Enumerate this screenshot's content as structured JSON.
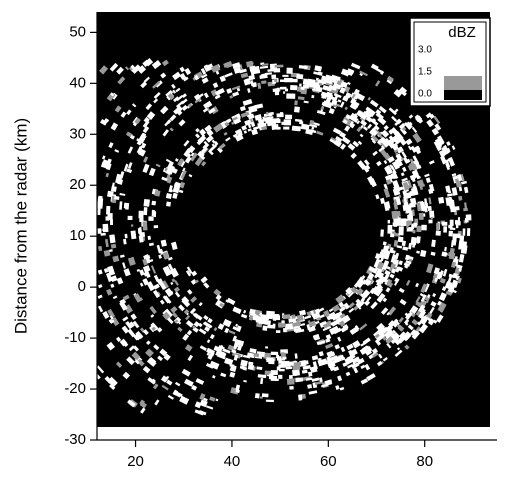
{
  "chart_data": {
    "type": "radar-image",
    "ylabel": "Distance from the radar (km)",
    "xlim": [
      12,
      95
    ],
    "xticks": [
      20,
      40,
      60,
      80
    ],
    "ylim": [
      -30,
      54
    ],
    "yticks": [
      -30,
      -20,
      -10,
      0,
      10,
      20,
      30,
      40,
      50
    ],
    "legend": "upper right",
    "colorbar": {
      "title": "dBZ",
      "ticks": [
        {
          "value": 3,
          "label": "3.0"
        },
        {
          "value": 1.5,
          "label": "1.5"
        },
        {
          "value": 0,
          "label": "0.0"
        }
      ],
      "colors": [
        "#000000",
        "#999999",
        "#ffffff"
      ]
    }
  }
}
